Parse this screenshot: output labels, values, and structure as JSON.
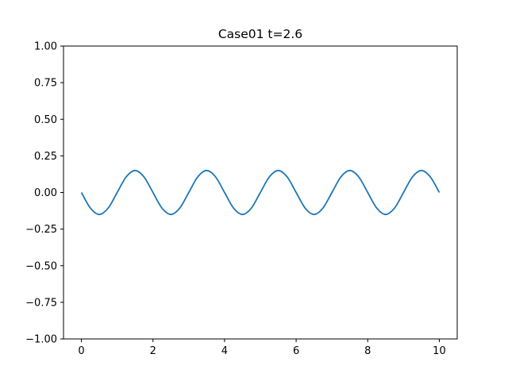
{
  "chart_data": {
    "type": "line",
    "title": "Case01 t=2.6",
    "xlabel": "",
    "ylabel": "",
    "xlim": [
      -0.5,
      10.5
    ],
    "ylim": [
      -1.0,
      1.0
    ],
    "x_ticks": [
      0,
      2,
      4,
      6,
      8,
      10
    ],
    "x_tick_labels": [
      "0",
      "2",
      "4",
      "6",
      "8",
      "10"
    ],
    "y_ticks": [
      -1.0,
      -0.75,
      -0.5,
      -0.25,
      0.0,
      0.25,
      0.5,
      0.75,
      1.0
    ],
    "y_tick_labels": [
      "−1.00",
      "−0.75",
      "−0.50",
      "−0.25",
      "0.00",
      "0.25",
      "0.50",
      "0.75",
      "1.00"
    ],
    "grid": false,
    "legend": "none",
    "series": [
      {
        "color": "#1f77b4",
        "x": [
          0,
          0.25,
          0.5,
          0.75,
          1.0,
          1.25,
          1.5,
          1.75,
          2.0,
          2.25,
          2.5,
          2.75,
          3.0,
          3.25,
          3.5,
          3.75,
          4.0,
          4.25,
          4.5,
          4.75,
          5.0,
          5.25,
          5.5,
          5.75,
          6.0,
          6.25,
          6.5,
          6.75,
          7.0,
          7.25,
          7.5,
          7.75,
          8.0,
          8.25,
          8.5,
          8.75,
          9.0,
          9.25,
          9.5,
          9.75,
          10.0
        ],
        "y": [
          0.0,
          -0.106,
          -0.15,
          -0.106,
          0.0,
          0.106,
          0.15,
          0.106,
          0.0,
          -0.106,
          -0.15,
          -0.106,
          0.0,
          0.106,
          0.15,
          0.106,
          0.0,
          -0.106,
          -0.15,
          -0.106,
          0.0,
          0.106,
          0.15,
          0.106,
          0.0,
          -0.106,
          -0.15,
          -0.106,
          0.0,
          0.106,
          0.15,
          0.106,
          0.0,
          -0.106,
          -0.15,
          -0.106,
          0.0,
          0.106,
          0.15,
          0.106,
          0.0
        ]
      }
    ]
  }
}
